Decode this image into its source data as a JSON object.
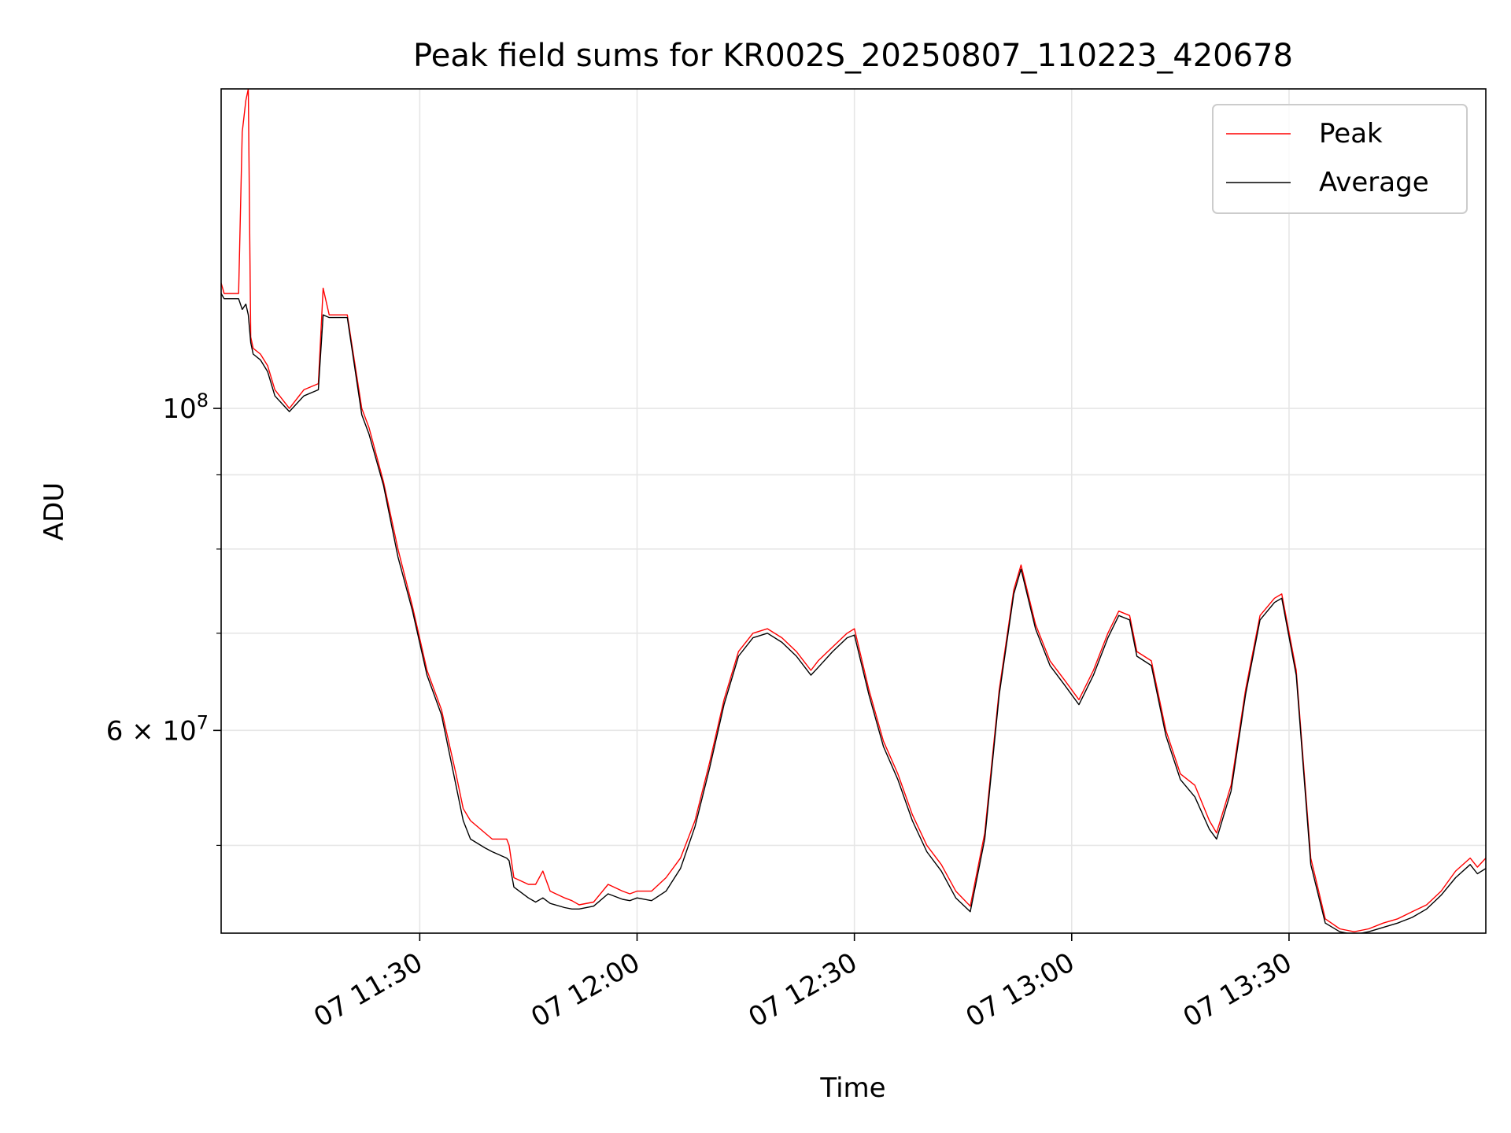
{
  "chart_data": {
    "type": "line",
    "title": "Peak field sums for KR002S_20250807_110223_420678",
    "xlabel": "Time",
    "ylabel": "ADU",
    "yscale": "log",
    "ylim": [
      43500000,
      166000000
    ],
    "xlim": [
      "2025-08-07 11:02:35",
      "2025-08-07 13:57:10"
    ],
    "x_ticks": [
      {
        "x": "2025-08-07 11:30",
        "label": "07 11:30"
      },
      {
        "x": "2025-08-07 12:00",
        "label": "07 12:00"
      },
      {
        "x": "2025-08-07 12:30",
        "label": "07 12:30"
      },
      {
        "x": "2025-08-07 13:00",
        "label": "07 13:00"
      },
      {
        "x": "2025-08-07 13:30",
        "label": "07 13:30"
      }
    ],
    "y_ticks": [
      {
        "y": 100000000,
        "base": "10",
        "exp": "8",
        "mult": ""
      },
      {
        "y": 60000000,
        "base": "10",
        "exp": "7",
        "mult": "6 × "
      }
    ],
    "y_minor_ticks": [
      50000000,
      70000000,
      80000000,
      90000000
    ],
    "grid": true,
    "legend": {
      "position": "upper right"
    },
    "series": [
      {
        "name": "Peak",
        "color": "#ff0000",
        "x": [
          "2025-08-07 11:02:35",
          "2025-08-07 11:03:00",
          "2025-08-07 11:05:00",
          "2025-08-07 11:05:30",
          "2025-08-07 11:06:00",
          "2025-08-07 11:06:20",
          "2025-08-07 11:06:40",
          "2025-08-07 11:07:00",
          "2025-08-07 11:08:00",
          "2025-08-07 11:09:00",
          "2025-08-07 11:10:00",
          "2025-08-07 11:12:00",
          "2025-08-07 11:14:00",
          "2025-08-07 11:16:00",
          "2025-08-07 11:16:40",
          "2025-08-07 11:17:30",
          "2025-08-07 11:20:00",
          "2025-08-07 11:22:00",
          "2025-08-07 11:23:00",
          "2025-08-07 11:25:00",
          "2025-08-07 11:27:00",
          "2025-08-07 11:29:00",
          "2025-08-07 11:31:00",
          "2025-08-07 11:33:00",
          "2025-08-07 11:35:00",
          "2025-08-07 11:36:00",
          "2025-08-07 11:37:00",
          "2025-08-07 11:39:00",
          "2025-08-07 11:40:00",
          "2025-08-07 11:42:00",
          "2025-08-07 11:42:20",
          "2025-08-07 11:43:00",
          "2025-08-07 11:45:00",
          "2025-08-07 11:46:00",
          "2025-08-07 11:47:00",
          "2025-08-07 11:48:00",
          "2025-08-07 11:50:00",
          "2025-08-07 11:51:00",
          "2025-08-07 11:52:00",
          "2025-08-07 11:54:00",
          "2025-08-07 11:56:00",
          "2025-08-07 11:58:00",
          "2025-08-07 11:59:00",
          "2025-08-07 12:00:00",
          "2025-08-07 12:02:00",
          "2025-08-07 12:04:00",
          "2025-08-07 12:06:00",
          "2025-08-07 12:08:00",
          "2025-08-07 12:10:00",
          "2025-08-07 12:12:00",
          "2025-08-07 12:14:00",
          "2025-08-07 12:16:00",
          "2025-08-07 12:18:00",
          "2025-08-07 12:20:00",
          "2025-08-07 12:22:00",
          "2025-08-07 12:24:00",
          "2025-08-07 12:25:00",
          "2025-08-07 12:27:00",
          "2025-08-07 12:29:00",
          "2025-08-07 12:30:00",
          "2025-08-07 12:32:00",
          "2025-08-07 12:34:00",
          "2025-08-07 12:36:00",
          "2025-08-07 12:38:00",
          "2025-08-07 12:40:00",
          "2025-08-07 12:42:00",
          "2025-08-07 12:44:00",
          "2025-08-07 12:46:00",
          "2025-08-07 12:48:00",
          "2025-08-07 12:50:00",
          "2025-08-07 12:52:00",
          "2025-08-07 12:53:00",
          "2025-08-07 12:55:00",
          "2025-08-07 12:57:00",
          "2025-08-07 12:59:00",
          "2025-08-07 13:01:00",
          "2025-08-07 13:03:00",
          "2025-08-07 13:05:00",
          "2025-08-07 13:06:30",
          "2025-08-07 13:08:00",
          "2025-08-07 13:09:00",
          "2025-08-07 13:11:00",
          "2025-08-07 13:13:00",
          "2025-08-07 13:15:00",
          "2025-08-07 13:17:00",
          "2025-08-07 13:19:00",
          "2025-08-07 13:20:00",
          "2025-08-07 13:22:00",
          "2025-08-07 13:24:00",
          "2025-08-07 13:26:00",
          "2025-08-07 13:28:00",
          "2025-08-07 13:29:00",
          "2025-08-07 13:31:00",
          "2025-08-07 13:33:00",
          "2025-08-07 13:35:00",
          "2025-08-07 13:37:00",
          "2025-08-07 13:39:00",
          "2025-08-07 13:41:00",
          "2025-08-07 13:43:00",
          "2025-08-07 13:45:00",
          "2025-08-07 13:47:00",
          "2025-08-07 13:49:00",
          "2025-08-07 13:51:00",
          "2025-08-07 13:53:00",
          "2025-08-07 13:55:00",
          "2025-08-07 13:56:00",
          "2025-08-07 13:57:10"
        ],
        "y": [
          122000000,
          120000000,
          120000000,
          155000000,
          163000000,
          166000000,
          112000000,
          110000000,
          109000000,
          107000000,
          103000000,
          100000000,
          103000000,
          104000000,
          121000000,
          116000000,
          116000000,
          100000000,
          97000000,
          89000000,
          80000000,
          73000000,
          66000000,
          62000000,
          56000000,
          53000000,
          52000000,
          51000000,
          50500000,
          50500000,
          50000000,
          47500000,
          47000000,
          47000000,
          48000000,
          46500000,
          46000000,
          45800000,
          45500000,
          45700000,
          47000000,
          46500000,
          46300000,
          46500000,
          46500000,
          47500000,
          49000000,
          52000000,
          57000000,
          63000000,
          68000000,
          70000000,
          70500000,
          69500000,
          68000000,
          66000000,
          67000000,
          68500000,
          70000000,
          70500000,
          64000000,
          59000000,
          56000000,
          52500000,
          50000000,
          48500000,
          46500000,
          45400000,
          51000000,
          64000000,
          75000000,
          78000000,
          71000000,
          67000000,
          65000000,
          63000000,
          66000000,
          70000000,
          72500000,
          72000000,
          68000000,
          67000000,
          60000000,
          56000000,
          55000000,
          52000000,
          51000000,
          55000000,
          64000000,
          72000000,
          74000000,
          74500000,
          66000000,
          49000000,
          44500000,
          43800000,
          43600000,
          43800000,
          44200000,
          44500000,
          45000000,
          45500000,
          46500000,
          48000000,
          49000000,
          48300000,
          49000000
        ]
      },
      {
        "name": "Average",
        "color": "#000000",
        "x": [
          "2025-08-07 11:02:35",
          "2025-08-07 11:03:00",
          "2025-08-07 11:05:00",
          "2025-08-07 11:05:30",
          "2025-08-07 11:06:00",
          "2025-08-07 11:06:20",
          "2025-08-07 11:06:40",
          "2025-08-07 11:07:00",
          "2025-08-07 11:08:00",
          "2025-08-07 11:09:00",
          "2025-08-07 11:10:00",
          "2025-08-07 11:12:00",
          "2025-08-07 11:14:00",
          "2025-08-07 11:16:00",
          "2025-08-07 11:16:40",
          "2025-08-07 11:17:30",
          "2025-08-07 11:20:00",
          "2025-08-07 11:22:00",
          "2025-08-07 11:23:00",
          "2025-08-07 11:25:00",
          "2025-08-07 11:27:00",
          "2025-08-07 11:29:00",
          "2025-08-07 11:31:00",
          "2025-08-07 11:33:00",
          "2025-08-07 11:35:00",
          "2025-08-07 11:36:00",
          "2025-08-07 11:37:00",
          "2025-08-07 11:39:00",
          "2025-08-07 11:40:00",
          "2025-08-07 11:42:00",
          "2025-08-07 11:42:20",
          "2025-08-07 11:43:00",
          "2025-08-07 11:45:00",
          "2025-08-07 11:46:00",
          "2025-08-07 11:47:00",
          "2025-08-07 11:48:00",
          "2025-08-07 11:50:00",
          "2025-08-07 11:51:00",
          "2025-08-07 11:52:00",
          "2025-08-07 11:54:00",
          "2025-08-07 11:56:00",
          "2025-08-07 11:58:00",
          "2025-08-07 11:59:00",
          "2025-08-07 12:00:00",
          "2025-08-07 12:02:00",
          "2025-08-07 12:04:00",
          "2025-08-07 12:06:00",
          "2025-08-07 12:08:00",
          "2025-08-07 12:10:00",
          "2025-08-07 12:12:00",
          "2025-08-07 12:14:00",
          "2025-08-07 12:16:00",
          "2025-08-07 12:18:00",
          "2025-08-07 12:20:00",
          "2025-08-07 12:22:00",
          "2025-08-07 12:24:00",
          "2025-08-07 12:25:00",
          "2025-08-07 12:27:00",
          "2025-08-07 12:29:00",
          "2025-08-07 12:30:00",
          "2025-08-07 12:32:00",
          "2025-08-07 12:34:00",
          "2025-08-07 12:36:00",
          "2025-08-07 12:38:00",
          "2025-08-07 12:40:00",
          "2025-08-07 12:42:00",
          "2025-08-07 12:44:00",
          "2025-08-07 12:46:00",
          "2025-08-07 12:48:00",
          "2025-08-07 12:50:00",
          "2025-08-07 12:52:00",
          "2025-08-07 12:53:00",
          "2025-08-07 12:55:00",
          "2025-08-07 12:57:00",
          "2025-08-07 12:59:00",
          "2025-08-07 13:01:00",
          "2025-08-07 13:03:00",
          "2025-08-07 13:05:00",
          "2025-08-07 13:06:30",
          "2025-08-07 13:08:00",
          "2025-08-07 13:09:00",
          "2025-08-07 13:11:00",
          "2025-08-07 13:13:00",
          "2025-08-07 13:15:00",
          "2025-08-07 13:17:00",
          "2025-08-07 13:19:00",
          "2025-08-07 13:20:00",
          "2025-08-07 13:22:00",
          "2025-08-07 13:24:00",
          "2025-08-07 13:26:00",
          "2025-08-07 13:28:00",
          "2025-08-07 13:29:00",
          "2025-08-07 13:31:00",
          "2025-08-07 13:33:00",
          "2025-08-07 13:35:00",
          "2025-08-07 13:37:00",
          "2025-08-07 13:39:00",
          "2025-08-07 13:41:00",
          "2025-08-07 13:43:00",
          "2025-08-07 13:45:00",
          "2025-08-07 13:47:00",
          "2025-08-07 13:49:00",
          "2025-08-07 13:51:00",
          "2025-08-07 13:53:00",
          "2025-08-07 13:55:00",
          "2025-08-07 13:56:00",
          "2025-08-07 13:57:10"
        ],
        "y": [
          120000000,
          119000000,
          119000000,
          117000000,
          118000000,
          116000000,
          111000000,
          109000000,
          108000000,
          106000000,
          102000000,
          99500000,
          102000000,
          103000000,
          116000000,
          115500000,
          115500000,
          99000000,
          96000000,
          88500000,
          79000000,
          72500000,
          65500000,
          61500000,
          55000000,
          52000000,
          50500000,
          49800000,
          49500000,
          49000000,
          48800000,
          46800000,
          46000000,
          45700000,
          46000000,
          45600000,
          45300000,
          45200000,
          45200000,
          45400000,
          46300000,
          45900000,
          45800000,
          46000000,
          45800000,
          46500000,
          48200000,
          51500000,
          56500000,
          62500000,
          67500000,
          69500000,
          70000000,
          69000000,
          67500000,
          65500000,
          66300000,
          68000000,
          69500000,
          69800000,
          63500000,
          58500000,
          55500000,
          52000000,
          49500000,
          48000000,
          46000000,
          45000000,
          50500000,
          63500000,
          74500000,
          77500000,
          70500000,
          66500000,
          64500000,
          62500000,
          65500000,
          69500000,
          72000000,
          71500000,
          67500000,
          66500000,
          59500000,
          55500000,
          54000000,
          51300000,
          50500000,
          54500000,
          63500000,
          71500000,
          73500000,
          74000000,
          65500000,
          48500000,
          44200000,
          43600000,
          43400000,
          43600000,
          43900000,
          44200000,
          44600000,
          45200000,
          46200000,
          47500000,
          48500000,
          47800000,
          48200000
        ]
      }
    ]
  }
}
